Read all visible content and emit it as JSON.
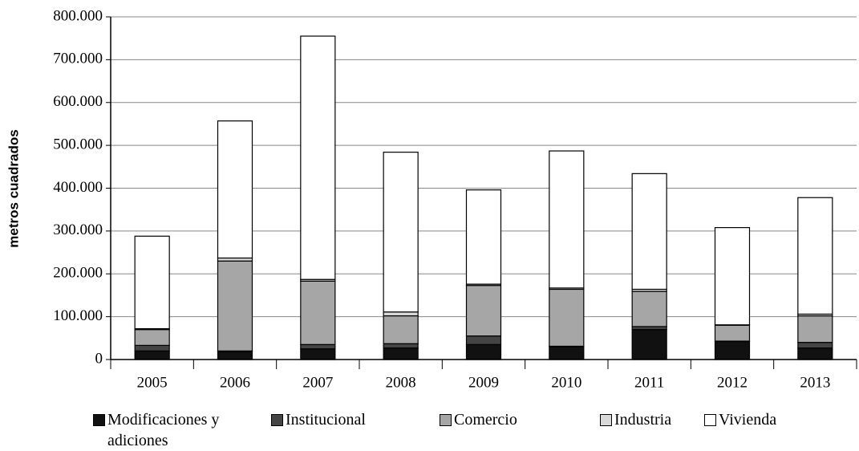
{
  "chart_data": {
    "type": "stacked-bar",
    "y_label": "metros cuadrados",
    "categories": [
      "2005",
      "2006",
      "2007",
      "2008",
      "2009",
      "2010",
      "2011",
      "2012",
      "2013"
    ],
    "series": [
      {
        "name": "Modificaciones y adiciones",
        "color": "#111111",
        "values": [
          20000,
          18000,
          25000,
          27000,
          35000,
          30000,
          70000,
          42000,
          27000
        ]
      },
      {
        "name": "Institucional",
        "color": "#444444",
        "values": [
          13000,
          2000,
          10000,
          10000,
          20000,
          1000,
          7000,
          1000,
          13000
        ]
      },
      {
        "name": "Comercio",
        "color": "#a6a6a6",
        "values": [
          37000,
          210000,
          148000,
          65000,
          118000,
          133000,
          82000,
          37000,
          62000
        ]
      },
      {
        "name": "Industria",
        "color": "#d9d9d9",
        "values": [
          2000,
          7000,
          4000,
          9000,
          3000,
          3000,
          5000,
          1000,
          4000
        ]
      },
      {
        "name": "Vivienda",
        "color": "#ffffff",
        "values": [
          216000,
          320000,
          568000,
          373000,
          220000,
          320000,
          270000,
          227000,
          272000
        ]
      }
    ],
    "ylim": [
      0,
      800000
    ],
    "yticks": [
      0,
      {
        "value": 100000,
        "label": "100.000"
      },
      {
        "value": 200000,
        "label": "200.000"
      },
      {
        "value": 300000,
        "label": "300.000"
      },
      {
        "value": 400000,
        "label": "400.000"
      },
      {
        "value": 500000,
        "label": "500.000"
      },
      {
        "value": 600000,
        "label": "600.000"
      },
      {
        "value": 700000,
        "label": "700.000"
      },
      {
        "value": 800000,
        "label": "800.000"
      }
    ],
    "grid": true
  }
}
